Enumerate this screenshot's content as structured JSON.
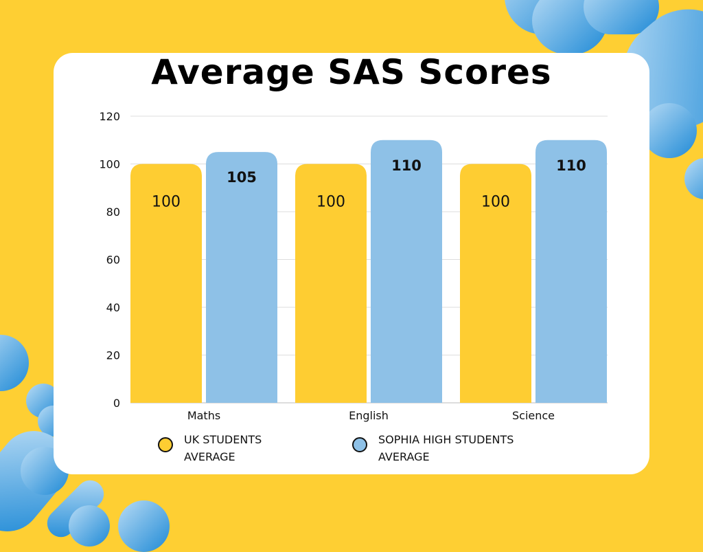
{
  "chart_data": {
    "type": "bar",
    "title": "Average SAS Scores",
    "categories": [
      "Maths",
      "English",
      "Science"
    ],
    "series": [
      {
        "name": "UK STUDENTS AVERAGE",
        "values": [
          100,
          100,
          100
        ],
        "color": "#fecd32"
      },
      {
        "name": "SOPHIA HIGH STUDENTS AVERAGE",
        "values": [
          105,
          110,
          110
        ],
        "color": "#8ec1e7"
      }
    ],
    "ylim": [
      0,
      120
    ],
    "yticks": [
      0,
      20,
      40,
      60,
      80,
      100,
      120
    ],
    "grid": true,
    "legend_position": "bottom",
    "data_labels": true
  },
  "colors": {
    "background": "#fecf33",
    "accent": "#1f8ad6"
  }
}
